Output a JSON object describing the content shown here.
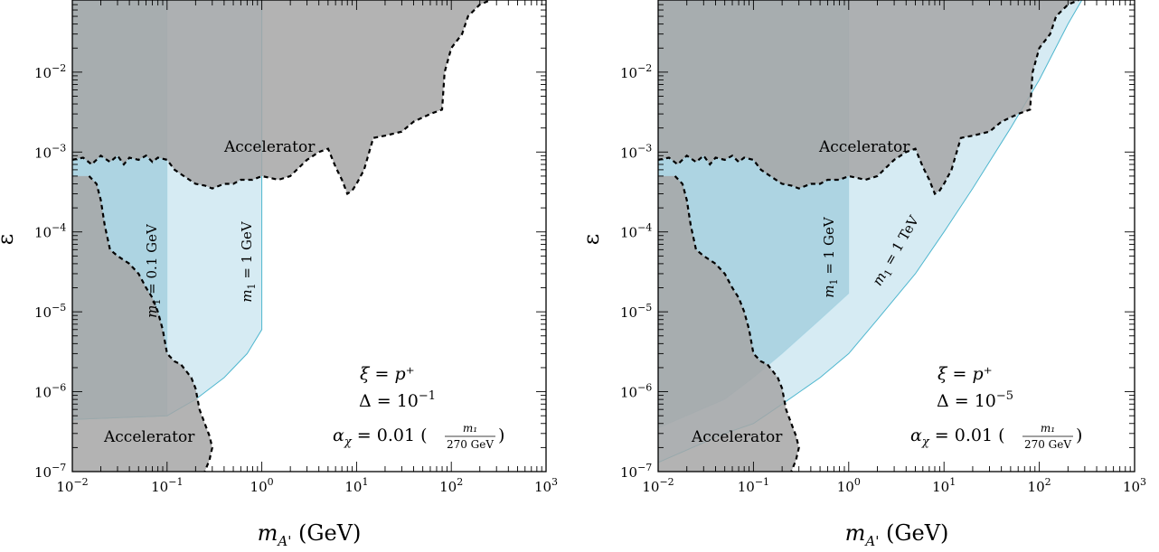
{
  "figure": {
    "panel_count": 2
  },
  "colors": {
    "excluded_fill": "#a6a6a6",
    "excluded_edge": "#000000",
    "band_fill": "#cfe8f1",
    "band_overlap_fill": "#8fc3d5",
    "band_edge": "#4fb7cf",
    "frame": "#000000"
  },
  "chart_data": [
    {
      "type": "area",
      "x_scale": "log",
      "y_scale": "log",
      "xlim": [
        0.01,
        1000
      ],
      "ylim": [
        1e-07,
        0.08
      ],
      "xlabel": "m_A' (GeV)",
      "ylabel": "ε",
      "x_ticks": [
        {
          "value": 0.01,
          "base": "10",
          "exp": "−2"
        },
        {
          "value": 0.1,
          "base": "10",
          "exp": "−1"
        },
        {
          "value": 1,
          "base": "10",
          "exp": "0"
        },
        {
          "value": 10,
          "base": "10",
          "exp": "1"
        },
        {
          "value": 100,
          "base": "10",
          "exp": "2"
        },
        {
          "value": 1000,
          "base": "10",
          "exp": "3"
        }
      ],
      "y_ticks": [
        {
          "value": 1e-07,
          "base": "10",
          "exp": "−7"
        },
        {
          "value": 1e-06,
          "base": "10",
          "exp": "−6"
        },
        {
          "value": 1e-05,
          "base": "10",
          "exp": "−5"
        },
        {
          "value": 0.0001,
          "base": "10",
          "exp": "−4"
        },
        {
          "value": 0.001,
          "base": "10",
          "exp": "−3"
        },
        {
          "value": 0.01,
          "base": "10",
          "exp": "−2"
        }
      ],
      "excluded_region": {
        "label": "Accelerator",
        "upper_boundary": [
          [
            0.01,
            0.0008
          ],
          [
            0.013,
            0.00085
          ],
          [
            0.016,
            0.0007
          ],
          [
            0.02,
            0.0009
          ],
          [
            0.025,
            0.00075
          ],
          [
            0.03,
            0.0009
          ],
          [
            0.035,
            0.0007
          ],
          [
            0.04,
            0.00085
          ],
          [
            0.05,
            0.0008
          ],
          [
            0.06,
            0.0009
          ],
          [
            0.07,
            0.00075
          ],
          [
            0.08,
            0.00085
          ],
          [
            0.1,
            0.0008
          ],
          [
            0.12,
            0.0006
          ],
          [
            0.15,
            0.0005
          ],
          [
            0.2,
            0.0004
          ],
          [
            0.25,
            0.00038
          ],
          [
            0.3,
            0.00035
          ],
          [
            0.4,
            0.0004
          ],
          [
            0.5,
            0.0004
          ],
          [
            0.6,
            0.00045
          ],
          [
            0.8,
            0.00045
          ],
          [
            1.0,
            0.0005
          ],
          [
            1.5,
            0.00045
          ],
          [
            2,
            0.0005
          ],
          [
            3,
            0.0008
          ],
          [
            4,
            0.001
          ],
          [
            5,
            0.0011
          ],
          [
            6,
            0.00065
          ],
          [
            7,
            0.00045
          ],
          [
            8,
            0.0003
          ],
          [
            9,
            0.00033
          ],
          [
            10,
            0.0004
          ],
          [
            12,
            0.0006
          ],
          [
            15,
            0.0015
          ],
          [
            20,
            0.0016
          ],
          [
            30,
            0.0018
          ],
          [
            40,
            0.0024
          ],
          [
            60,
            0.003
          ],
          [
            80,
            0.0034
          ],
          [
            85,
            0.01
          ],
          [
            100,
            0.02
          ],
          [
            130,
            0.03
          ],
          [
            150,
            0.05
          ],
          [
            200,
            0.07
          ],
          [
            260,
            0.08
          ]
        ],
        "lower_boundary": [
          [
            0.015,
            0.0005
          ],
          [
            0.018,
            0.0004
          ],
          [
            0.02,
            0.00025
          ],
          [
            0.022,
            0.00012
          ],
          [
            0.025,
            6e-05
          ],
          [
            0.03,
            5e-05
          ],
          [
            0.04,
            4e-05
          ],
          [
            0.05,
            3e-05
          ],
          [
            0.06,
            2e-05
          ],
          [
            0.07,
            1.5e-05
          ],
          [
            0.08,
            1e-05
          ],
          [
            0.09,
            6e-06
          ],
          [
            0.1,
            3e-06
          ],
          [
            0.12,
            2.4e-06
          ],
          [
            0.14,
            2.2e-06
          ],
          [
            0.16,
            1.8e-06
          ],
          [
            0.18,
            1.5e-06
          ],
          [
            0.2,
            1.1e-06
          ],
          [
            0.21,
            8e-07
          ],
          [
            0.22,
            6e-07
          ],
          [
            0.25,
            4e-07
          ],
          [
            0.28,
            2.8e-07
          ],
          [
            0.3,
            2e-07
          ],
          [
            0.28,
            1.4e-07
          ],
          [
            0.25,
            1e-07
          ]
        ]
      },
      "bands": [
        {
          "label_mass": "0.1",
          "label_unit": "GeV",
          "mass": 0.1,
          "boundary": [
            [
              0.01,
              4.5e-07
            ],
            [
              0.1,
              5e-07
            ],
            [
              0.1,
              0.08
            ]
          ]
        },
        {
          "label_mass": "1",
          "label_unit": "GeV",
          "mass": 1,
          "boundary": [
            [
              0.01,
              4.5e-07
            ],
            [
              0.1,
              5e-07
            ],
            [
              0.2,
              8e-07
            ],
            [
              0.4,
              1.5e-06
            ],
            [
              0.7,
              3e-06
            ],
            [
              1,
              6e-06
            ],
            [
              1,
              0.08
            ]
          ]
        }
      ],
      "annotations": {
        "xi": "ξ = p⁺",
        "delta_value": "10",
        "delta_exp": "−1",
        "alpha_prefix": "α",
        "alpha_sub": "χ",
        "alpha_value": " = 0.01 ",
        "frac_num": "m₁",
        "frac_den": "270 GeV",
        "accelerator_top": "Accelerator",
        "accelerator_bottom": "Accelerator"
      }
    },
    {
      "type": "area",
      "x_scale": "log",
      "y_scale": "log",
      "xlim": [
        0.01,
        1000
      ],
      "ylim": [
        1e-07,
        0.08
      ],
      "xlabel": "m_A' (GeV)",
      "ylabel": "ε",
      "x_ticks": [
        {
          "value": 0.01,
          "base": "10",
          "exp": "−2"
        },
        {
          "value": 0.1,
          "base": "10",
          "exp": "−1"
        },
        {
          "value": 1,
          "base": "10",
          "exp": "0"
        },
        {
          "value": 10,
          "base": "10",
          "exp": "1"
        },
        {
          "value": 100,
          "base": "10",
          "exp": "2"
        },
        {
          "value": 1000,
          "base": "10",
          "exp": "3"
        }
      ],
      "y_ticks": [
        {
          "value": 1e-07,
          "base": "10",
          "exp": "−7"
        },
        {
          "value": 1e-06,
          "base": "10",
          "exp": "−6"
        },
        {
          "value": 1e-05,
          "base": "10",
          "exp": "−5"
        },
        {
          "value": 0.0001,
          "base": "10",
          "exp": "−4"
        },
        {
          "value": 0.001,
          "base": "10",
          "exp": "−3"
        },
        {
          "value": 0.01,
          "base": "10",
          "exp": "−2"
        }
      ],
      "excluded_region": {
        "label": "Accelerator",
        "upper_boundary": [
          [
            0.01,
            0.0008
          ],
          [
            0.013,
            0.00085
          ],
          [
            0.016,
            0.0007
          ],
          [
            0.02,
            0.0009
          ],
          [
            0.025,
            0.00075
          ],
          [
            0.03,
            0.0009
          ],
          [
            0.035,
            0.0007
          ],
          [
            0.04,
            0.00085
          ],
          [
            0.05,
            0.0008
          ],
          [
            0.06,
            0.0009
          ],
          [
            0.07,
            0.00075
          ],
          [
            0.08,
            0.00085
          ],
          [
            0.1,
            0.0008
          ],
          [
            0.12,
            0.0006
          ],
          [
            0.15,
            0.0005
          ],
          [
            0.2,
            0.0004
          ],
          [
            0.25,
            0.00038
          ],
          [
            0.3,
            0.00035
          ],
          [
            0.4,
            0.0004
          ],
          [
            0.5,
            0.0004
          ],
          [
            0.6,
            0.00045
          ],
          [
            0.8,
            0.00045
          ],
          [
            1.0,
            0.0005
          ],
          [
            1.5,
            0.00045
          ],
          [
            2,
            0.0005
          ],
          [
            3,
            0.0008
          ],
          [
            4,
            0.001
          ],
          [
            5,
            0.0011
          ],
          [
            6,
            0.00065
          ],
          [
            7,
            0.00045
          ],
          [
            8,
            0.0003
          ],
          [
            9,
            0.00033
          ],
          [
            10,
            0.0004
          ],
          [
            12,
            0.0006
          ],
          [
            15,
            0.0015
          ],
          [
            20,
            0.0016
          ],
          [
            30,
            0.0018
          ],
          [
            40,
            0.0024
          ],
          [
            60,
            0.003
          ],
          [
            80,
            0.0034
          ],
          [
            85,
            0.01
          ],
          [
            100,
            0.02
          ],
          [
            130,
            0.03
          ],
          [
            150,
            0.05
          ],
          [
            200,
            0.07
          ],
          [
            260,
            0.08
          ]
        ],
        "lower_boundary": [
          [
            0.015,
            0.0005
          ],
          [
            0.018,
            0.0004
          ],
          [
            0.02,
            0.00025
          ],
          [
            0.022,
            0.00012
          ],
          [
            0.025,
            6e-05
          ],
          [
            0.03,
            5e-05
          ],
          [
            0.04,
            4e-05
          ],
          [
            0.05,
            3e-05
          ],
          [
            0.06,
            2e-05
          ],
          [
            0.07,
            1.5e-05
          ],
          [
            0.08,
            1e-05
          ],
          [
            0.09,
            6e-06
          ],
          [
            0.1,
            3e-06
          ],
          [
            0.12,
            2.4e-06
          ],
          [
            0.14,
            2.2e-06
          ],
          [
            0.16,
            1.8e-06
          ],
          [
            0.18,
            1.5e-06
          ],
          [
            0.2,
            1.1e-06
          ],
          [
            0.21,
            8e-07
          ],
          [
            0.22,
            6e-07
          ],
          [
            0.25,
            4e-07
          ],
          [
            0.28,
            2.8e-07
          ],
          [
            0.3,
            2e-07
          ],
          [
            0.28,
            1.4e-07
          ],
          [
            0.25,
            1e-07
          ]
        ]
      },
      "bands": [
        {
          "label_mass": "1",
          "label_unit": "GeV",
          "mass": 1,
          "boundary": [
            [
              0.01,
              3.5e-07
            ],
            [
              0.05,
              8e-07
            ],
            [
              0.1,
              1.5e-06
            ],
            [
              0.2,
              3e-06
            ],
            [
              0.5,
              8e-06
            ],
            [
              1,
              1.7e-05
            ],
            [
              1,
              0.08
            ]
          ]
        },
        {
          "label_mass": "1",
          "label_unit": "TeV",
          "mass": 1000,
          "boundary": [
            [
              0.01,
              1.3e-07
            ],
            [
              0.05,
              3e-07
            ],
            [
              0.1,
              4e-07
            ],
            [
              0.2,
              7e-07
            ],
            [
              0.5,
              1.5e-06
            ],
            [
              1,
              3e-06
            ],
            [
              2,
              8e-06
            ],
            [
              5,
              3e-05
            ],
            [
              10,
              0.0001
            ],
            [
              20,
              0.00035
            ],
            [
              50,
              0.002
            ],
            [
              100,
              0.008
            ],
            [
              200,
              0.04
            ],
            [
              280,
              0.08
            ]
          ]
        }
      ],
      "annotations": {
        "xi": "ξ = p⁺",
        "delta_value": "10",
        "delta_exp": "−5",
        "alpha_prefix": "α",
        "alpha_sub": "χ",
        "alpha_value": " = 0.01 ",
        "frac_num": "m₁",
        "frac_den": "270 GeV",
        "accelerator_top": "Accelerator",
        "accelerator_bottom": "Accelerator"
      }
    }
  ]
}
